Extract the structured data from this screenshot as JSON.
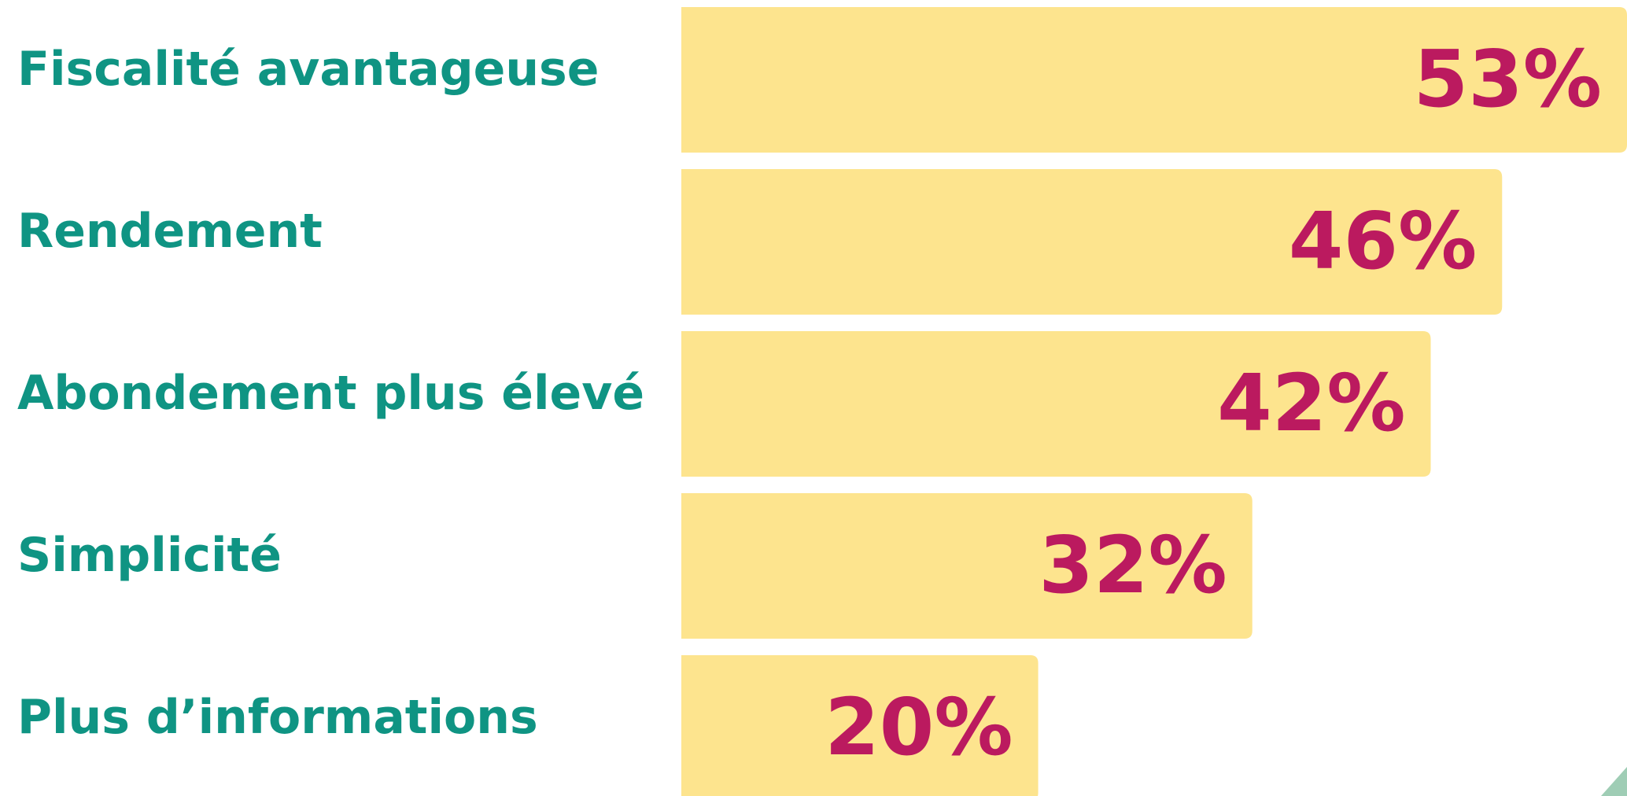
{
  "chart_data": {
    "type": "bar",
    "orientation": "horizontal",
    "categories": [
      "Fiscalité avantageuse",
      "Rendement",
      "Abondement plus élevé",
      "Simplicité",
      "Plus d’informations"
    ],
    "values": [
      53,
      46,
      42,
      32,
      20
    ],
    "value_labels": [
      "53%",
      "46%",
      "42%",
      "32%",
      "20%"
    ],
    "color": "#fde48e"
  }
}
